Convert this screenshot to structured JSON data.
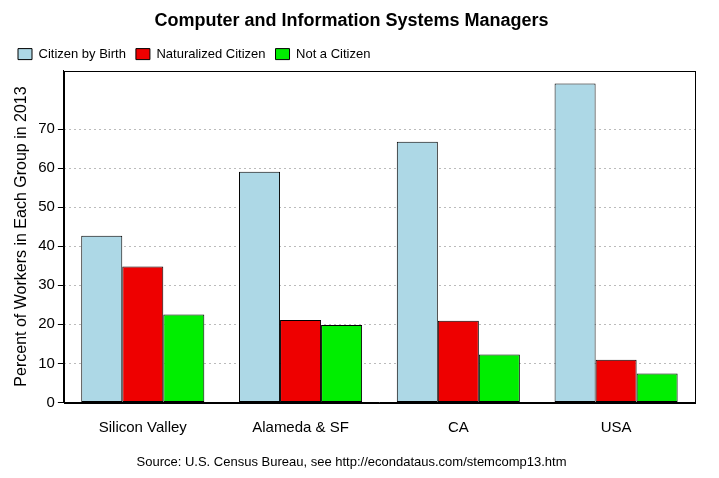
{
  "chart_data": {
    "type": "bar",
    "title": "Computer and Information Systems Managers",
    "subtitle": "Source: U.S. Census Bureau, see http://econdataus.com/stemcomp13.htm",
    "y_label": "Percent of Workers in Each Group in 2013",
    "categories": [
      "Silicon Valley",
      "Alameda & SF",
      "CA",
      "USA"
    ],
    "series": [
      {
        "name": "Citizen by Birth",
        "color": "#add8e6",
        "values": [
          42.7,
          59.1,
          66.8,
          81.7
        ]
      },
      {
        "name": "Naturalized Citizen",
        "color": "#ee0000",
        "values": [
          34.8,
          21.1,
          20.9,
          10.9
        ]
      },
      {
        "name": "Not a Citizen",
        "color": "#00ee00",
        "values": [
          22.5,
          19.8,
          12.3,
          7.4
        ]
      }
    ],
    "ylim": [
      0,
      85
    ],
    "yticks": [
      0,
      10,
      20,
      30,
      40,
      50,
      60,
      70
    ],
    "grid": true,
    "legend": "top-left"
  }
}
